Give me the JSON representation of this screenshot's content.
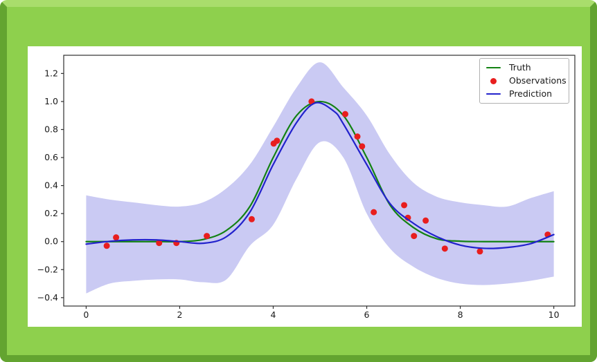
{
  "window": {
    "frame_face_color": "#8ed04d",
    "frame_highlight_color": "#a9dd6c",
    "frame_shadow_color": "#63a430",
    "card_background": "#ffffff"
  },
  "chart_data": {
    "type": "line",
    "title": "",
    "xlabel": "",
    "ylabel": "",
    "xlim": [
      -0.48,
      10.45
    ],
    "ylim": [
      -0.46,
      1.33
    ],
    "x_ticks": [
      0,
      2,
      4,
      6,
      8,
      10
    ],
    "x_tick_labels": [
      "0",
      "2",
      "4",
      "6",
      "8",
      "10"
    ],
    "y_ticks": [
      -0.4,
      -0.2,
      0,
      0.2,
      0.4,
      0.6,
      0.8,
      1,
      1.2
    ],
    "y_tick_labels": [
      "−0.4",
      "−0.2",
      "0.0",
      "0.2",
      "0.4",
      "0.6",
      "0.8",
      "1.0",
      "1.2"
    ],
    "grid": false,
    "legend_position": "upper-right",
    "axis_color": "#2e2e2e",
    "tick_label_color": "#1a1a1a",
    "band": {
      "label": "confidence-interval",
      "color": "#cacaf3",
      "x": [
        0,
        0.5,
        1,
        1.5,
        2,
        2.5,
        3,
        3.5,
        4,
        4.5,
        5,
        5.5,
        6,
        6.5,
        7,
        7.5,
        8,
        8.5,
        9,
        9.5,
        10
      ],
      "upper": [
        0.33,
        0.3,
        0.28,
        0.26,
        0.25,
        0.28,
        0.38,
        0.55,
        0.82,
        1.1,
        1.28,
        1.1,
        0.9,
        0.62,
        0.42,
        0.32,
        0.28,
        0.26,
        0.25,
        0.31,
        0.36
      ],
      "lower": [
        -0.37,
        -0.3,
        -0.28,
        -0.27,
        -0.27,
        -0.29,
        -0.27,
        -0.03,
        0.12,
        0.45,
        0.71,
        0.6,
        0.2,
        -0.05,
        -0.18,
        -0.26,
        -0.3,
        -0.31,
        -0.3,
        -0.28,
        -0.25
      ]
    },
    "series": [
      {
        "name": "Truth",
        "type": "line",
        "color": "#128212",
        "points": [
          [
            0,
            0
          ],
          [
            0.5,
            0
          ],
          [
            1,
            0
          ],
          [
            1.5,
            0
          ],
          [
            2,
            0
          ],
          [
            2.5,
            0.015
          ],
          [
            3,
            0.08
          ],
          [
            3.5,
            0.25
          ],
          [
            4,
            0.6
          ],
          [
            4.5,
            0.9
          ],
          [
            5,
            1.0
          ],
          [
            5.5,
            0.9
          ],
          [
            6,
            0.6
          ],
          [
            6.5,
            0.26
          ],
          [
            7,
            0.1
          ],
          [
            7.5,
            0.02
          ],
          [
            8,
            0.003
          ],
          [
            8.5,
            0
          ],
          [
            9,
            0
          ],
          [
            9.5,
            0
          ],
          [
            10,
            0
          ]
        ]
      },
      {
        "name": "Observations",
        "type": "scatter",
        "color": "#e81e1e",
        "points": [
          [
            0.44,
            -0.03
          ],
          [
            0.64,
            0.03
          ],
          [
            1.56,
            -0.01
          ],
          [
            1.93,
            -0.01
          ],
          [
            2.58,
            0.04
          ],
          [
            3.54,
            0.16
          ],
          [
            4.01,
            0.7
          ],
          [
            4.08,
            0.72
          ],
          [
            4.82,
            1.0
          ],
          [
            5.54,
            0.91
          ],
          [
            5.8,
            0.75
          ],
          [
            5.9,
            0.68
          ],
          [
            6.15,
            0.21
          ],
          [
            6.8,
            0.26
          ],
          [
            6.88,
            0.17
          ],
          [
            7.01,
            0.04
          ],
          [
            7.26,
            0.15
          ],
          [
            7.67,
            -0.05
          ],
          [
            8.42,
            -0.07
          ],
          [
            9.87,
            0.05
          ]
        ]
      },
      {
        "name": "Prediction",
        "type": "line",
        "color": "#2222cc",
        "points": [
          [
            0,
            -0.018
          ],
          [
            0.5,
            0.002
          ],
          [
            1,
            0.012
          ],
          [
            1.5,
            0.012
          ],
          [
            2,
            0
          ],
          [
            2.5,
            -0.012
          ],
          [
            3,
            0.035
          ],
          [
            3.5,
            0.21
          ],
          [
            4,
            0.55
          ],
          [
            4.5,
            0.85
          ],
          [
            4.9,
            0.99
          ],
          [
            5.3,
            0.93
          ],
          [
            5.5,
            0.84
          ],
          [
            6,
            0.55
          ],
          [
            6.5,
            0.27
          ],
          [
            7,
            0.13
          ],
          [
            7.5,
            0.035
          ],
          [
            8,
            -0.025
          ],
          [
            8.5,
            -0.048
          ],
          [
            9,
            -0.042
          ],
          [
            9.5,
            -0.015
          ],
          [
            10,
            0.05
          ]
        ]
      }
    ]
  }
}
